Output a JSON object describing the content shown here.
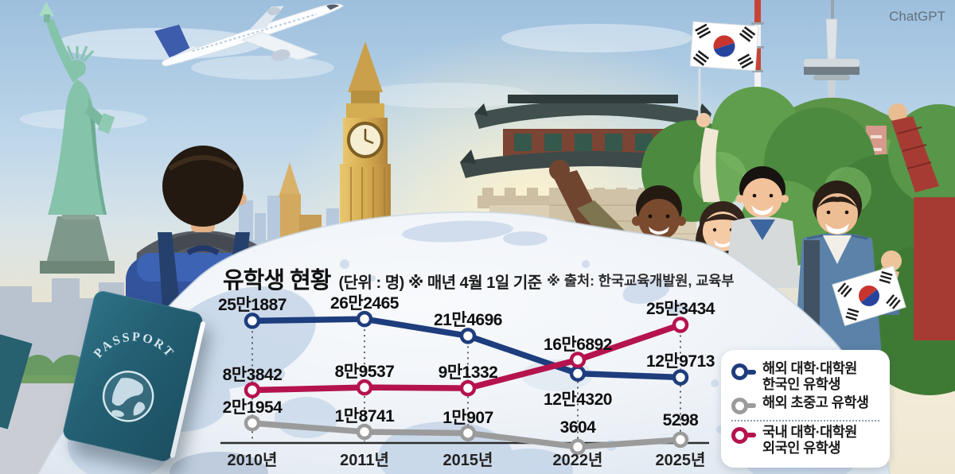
{
  "watermark": "ChatGPT",
  "header": {
    "title": "유학생 현황",
    "subtitle": "(단위 : 명) ※ 매년 4월 1일 기준",
    "source": "※ 출처: 한국교육개발원, 교육부"
  },
  "passport": {
    "label": "PASSPORT"
  },
  "legend": {
    "items": [
      {
        "color": "#1e3d7d",
        "lines": [
          "해외 대학·대학원",
          "한국인 유학생"
        ]
      },
      {
        "color": "#9b9b9b",
        "lines": [
          "해외 초중고 유학생"
        ]
      },
      {
        "color": "#b5134e",
        "lines": [
          "국내 대학·대학원",
          "외국인 유학생"
        ]
      }
    ]
  },
  "chart_data": {
    "type": "line",
    "title": "유학생 현황",
    "unit": "명",
    "note": "매년 4월 1일 기준",
    "source": "한국교육개발원, 교육부",
    "categories": [
      "2010년",
      "2011년",
      "2015년",
      "2022년",
      "2025년"
    ],
    "series": [
      {
        "name": "해외 대학·대학원 한국인 유학생",
        "color": "#1e3d7d",
        "values": [
          251887,
          262465,
          214696,
          124320,
          129713
        ],
        "labels": [
          "25만1887",
          "26만2465",
          "21만4696",
          "12만4320",
          "12만9713"
        ]
      },
      {
        "name": "해외 초중고 유학생",
        "color": "#9b9b9b",
        "values": [
          21954,
          18741,
          10907,
          3604,
          5298
        ],
        "labels": [
          "2만1954",
          "1만8741",
          "1만907",
          "3604",
          "5298"
        ]
      },
      {
        "name": "국내 대학·대학원 외국인 유학생",
        "color": "#b5134e",
        "values": [
          83842,
          89537,
          91332,
          166892,
          253434
        ],
        "labels": [
          "8만3842",
          "8만9537",
          "9만1332",
          "16만6892",
          "25만3434"
        ]
      }
    ],
    "legend_position": "right",
    "grid": false
  }
}
